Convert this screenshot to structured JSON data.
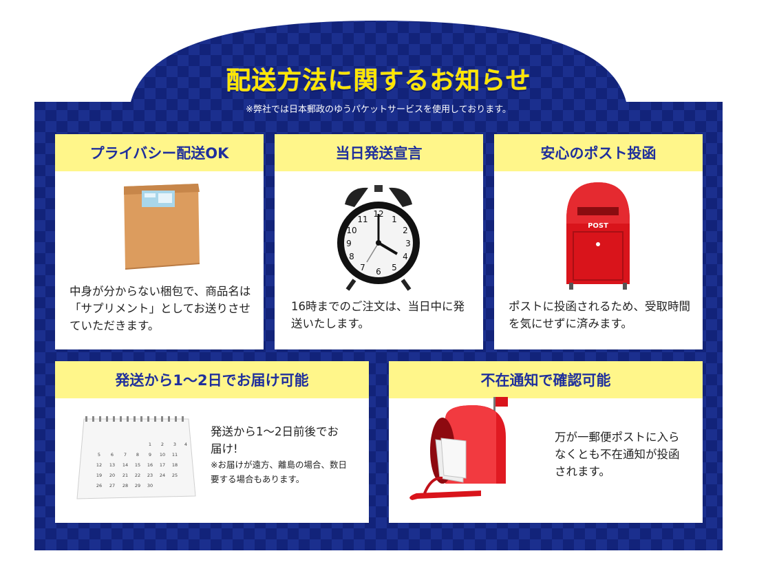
{
  "header": {
    "title": "配送方法に関するお知らせ",
    "subtitle": "※弊社では日本郵政のゆうパケットサービスを使用しております。"
  },
  "cards": [
    {
      "heading": "プライバシー配送OK",
      "body": "中身が分からない梱包で、商品名は「サプリメント」としてお送りさせていただきます。",
      "icon": "envelope-package-icon"
    },
    {
      "heading": "当日発送宣言",
      "body": "16時までのご注文は、当日中に発送いたします。",
      "icon": "alarm-clock-icon"
    },
    {
      "heading": "安心のポスト投函",
      "body": "ポストに投函されるため、受取時間を気にせずに済みます。",
      "icon": "post-box-icon",
      "post_label": "POST"
    },
    {
      "heading": "発送から1～2日でお届け可能",
      "body": "発送から1～2日前後でお届け!",
      "note": "※お届けが遠方、離島の場合、数日要する場合もあります。",
      "icon": "calendar-icon"
    },
    {
      "heading": "不在通知で確認可能",
      "body": "万が一郵便ポストに入らなくとも不在通知が投函されます。",
      "icon": "mailbox-icon"
    }
  ],
  "colors": {
    "navy": "#12237a",
    "navy_light": "#1b2f8e",
    "heading_bg": "#fff68a",
    "heading_text": "#1f2f9c",
    "title_yellow": "#ffe600",
    "red": "#d9141b"
  }
}
